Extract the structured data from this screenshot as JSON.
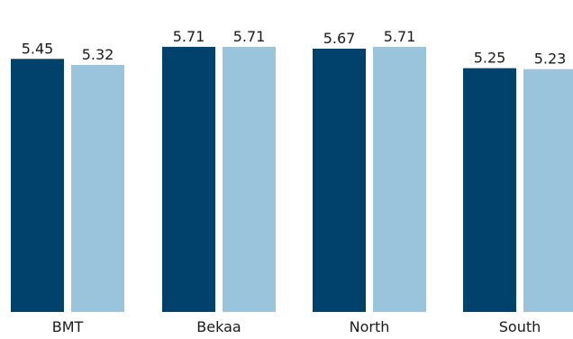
{
  "chart_data": {
    "type": "bar",
    "categories": [
      "BMT",
      "Bekaa",
      "North",
      "South"
    ],
    "series": [
      {
        "values": [
          5.45,
          5.71,
          5.67,
          5.25
        ],
        "color": "#00426b"
      },
      {
        "values": [
          5.32,
          5.71,
          5.71,
          5.23
        ],
        "color": "#9ac3dc"
      }
    ],
    "value_labels": [
      [
        "5.45",
        "5.71",
        "5.67",
        "5.25"
      ],
      [
        "5.32",
        "5.71",
        "5.71",
        "5.23"
      ]
    ],
    "title": "",
    "xlabel": "",
    "ylabel": "",
    "ylim": [
      0,
      6.0
    ],
    "grid": false,
    "legend": "none"
  }
}
